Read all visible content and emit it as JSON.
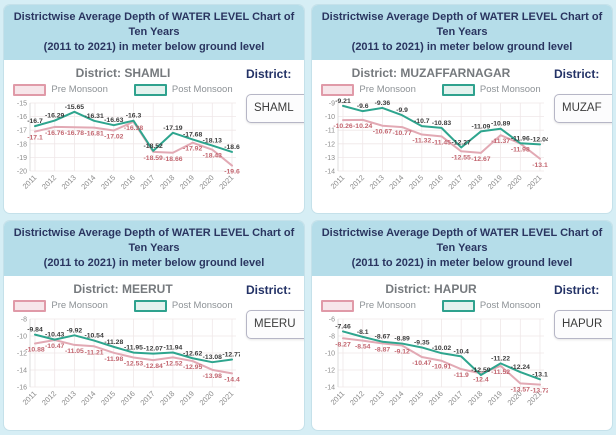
{
  "shared": {
    "title_line1": "Districtwise Average Depth of WATER LEVEL Chart of Ten Years",
    "title_line2": "(2011 to 2021) in meter below ground level",
    "legend_pre": "Pre Monsoon",
    "legend_post": "Post Monsoon",
    "district_label": "District:"
  },
  "colors": {
    "page_bg": "#d6eef5",
    "header_bg": "#b5dde9",
    "title_text": "#2a3560",
    "pre_line": "#e2a9b4",
    "pre_fill": "#f7e6ea",
    "pre_label": "#c2656f",
    "post_line": "#2ea58e",
    "post_fill": "#e3f2ee",
    "post_label": "#3b3b3b",
    "grid_line": "#efe7e8",
    "axis_text": "#8b8b8b"
  },
  "panels": [
    {
      "heading": "District: SHAMLI",
      "select_text": "SHAML"
    },
    {
      "heading": "District: MUZAFFARNAGAR",
      "select_text": "MUZAF"
    },
    {
      "heading": "District: MEERUT",
      "select_text": "MEERU"
    },
    {
      "heading": "District: HAPUR",
      "select_text": "HAPUR"
    }
  ],
  "chart_data": [
    {
      "type": "line",
      "title": "SHAMLI",
      "x": [
        "2011",
        "2012",
        "2013",
        "2014",
        "2015",
        "2016",
        "2017",
        "2018",
        "2019",
        "2020",
        "2021"
      ],
      "y_ticks": [
        -15,
        -16,
        -17,
        -18,
        -19,
        -20
      ],
      "ylim": [
        -20,
        -15
      ],
      "legend_position": "top",
      "grid": true,
      "series": [
        {
          "name": "Pre Monsoon",
          "key": "pre",
          "values": [
            -17.1,
            -16.76,
            -16.78,
            -16.81,
            -17.02,
            -16.38,
            -18.59,
            -18.66,
            -17.92,
            -18.43,
            -19.6
          ]
        },
        {
          "name": "Post Monsoon",
          "key": "post",
          "values": [
            -16.7,
            -16.29,
            -15.65,
            -16.31,
            -16.63,
            -16.3,
            -18.52,
            -17.19,
            -17.68,
            -18.13,
            -18.6
          ]
        }
      ]
    },
    {
      "type": "line",
      "title": "MUZAFFARNAGAR",
      "x": [
        "2011",
        "2012",
        "2013",
        "2014",
        "2015",
        "2016",
        "2017",
        "2018",
        "2019",
        "2020",
        "2021"
      ],
      "y_ticks": [
        -9,
        -10,
        -11,
        -12,
        -13,
        -14
      ],
      "ylim": [
        -14,
        -9
      ],
      "legend_position": "top",
      "grid": true,
      "series": [
        {
          "name": "Pre Monsoon",
          "key": "pre",
          "values": [
            -10.26,
            -10.24,
            -10.67,
            -10.77,
            -11.32,
            -11.45,
            -12.55,
            -12.67,
            -11.37,
            -11.98,
            -13.1
          ]
        },
        {
          "name": "Post Monsoon",
          "key": "post",
          "values": [
            -9.21,
            -9.6,
            -9.36,
            -9.9,
            -10.7,
            -10.83,
            -12.27,
            -11.09,
            -10.89,
            -11.96,
            -12.04
          ]
        }
      ]
    },
    {
      "type": "line",
      "title": "MEERUT",
      "x": [
        "2011",
        "2012",
        "2013",
        "2014",
        "2015",
        "2016",
        "2017",
        "2018",
        "2019",
        "2020",
        "2021"
      ],
      "y_ticks": [
        -8,
        -10,
        -12,
        -14,
        -16
      ],
      "ylim": [
        -16,
        -8
      ],
      "legend_position": "top",
      "grid": true,
      "series": [
        {
          "name": "Pre Monsoon",
          "key": "pre",
          "values": [
            -10.88,
            -10.47,
            -11.05,
            -11.21,
            -11.98,
            -12.53,
            -12.84,
            -12.52,
            -12.95,
            -13.98,
            -14.4
          ]
        },
        {
          "name": "Post Monsoon",
          "key": "post",
          "values": [
            -9.84,
            -10.43,
            -9.92,
            -10.54,
            -11.28,
            -11.95,
            -12.07,
            -11.94,
            -12.62,
            -13.08,
            -12.77
          ]
        }
      ]
    },
    {
      "type": "line",
      "title": "HAPUR",
      "x": [
        "2011",
        "2012",
        "2013",
        "2014",
        "2015",
        "2016",
        "2017",
        "2018",
        "2019",
        "2020",
        "2021"
      ],
      "y_ticks": [
        -6,
        -8,
        -10,
        -12,
        -14
      ],
      "ylim": [
        -14,
        -6
      ],
      "legend_position": "top",
      "grid": true,
      "series": [
        {
          "name": "Pre Monsoon",
          "key": "pre",
          "values": [
            -8.27,
            -8.54,
            -8.87,
            -9.12,
            -10.47,
            -10.91,
            -11.9,
            -12.4,
            -11.52,
            -13.57,
            -13.72
          ]
        },
        {
          "name": "Post Monsoon",
          "key": "post",
          "values": [
            -7.46,
            -8.1,
            -8.67,
            -8.89,
            -9.35,
            -10.02,
            -10.4,
            -12.59,
            -11.22,
            -12.24,
            -13.1
          ]
        }
      ]
    }
  ]
}
